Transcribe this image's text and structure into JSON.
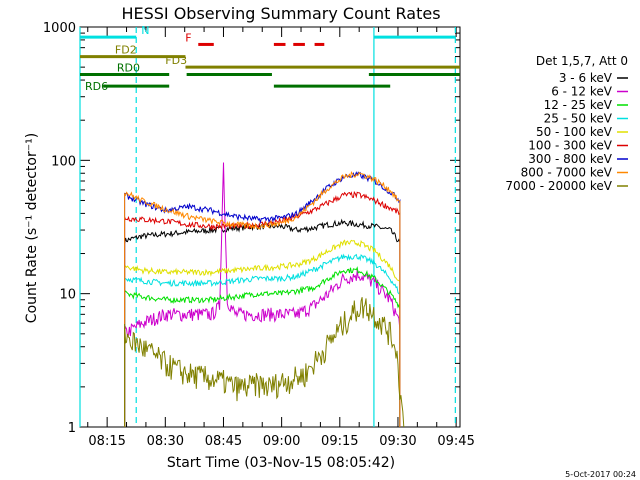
{
  "chart_data": {
    "type": "line",
    "title": "HESSI Observing Summary Count Rates",
    "xlabel": "Start Time (03-Nov-15 08:05:42)",
    "ylabel": "Count Rate (s⁻¹ detector⁻¹)",
    "yscale": "log",
    "ylim": [
      1,
      1000
    ],
    "xlim_minutes": [
      8.0,
      106.0
    ],
    "yticks": [
      {
        "v": 1,
        "label": "1"
      },
      {
        "v": 10,
        "label": "10"
      },
      {
        "v": 100,
        "label": "100"
      },
      {
        "v": 1000,
        "label": "1000"
      }
    ],
    "xticks": [
      {
        "t": 15,
        "label": "08:15"
      },
      {
        "t": 30,
        "label": "08:30"
      },
      {
        "t": 45,
        "label": "08:45"
      },
      {
        "t": 60,
        "label": "09:00"
      },
      {
        "t": 75,
        "label": "09:15"
      },
      {
        "t": 90,
        "label": "09:30"
      },
      {
        "t": 105,
        "label": "09:45"
      }
    ],
    "legend_title": "Det 1,5,7, Att 0",
    "series": [
      {
        "name": "3 - 6 keV",
        "color": "#000000",
        "x": [
          19.5,
          24,
          30,
          36,
          42,
          48,
          54,
          60,
          64,
          68,
          72,
          76,
          80,
          84,
          88,
          90.5
        ],
        "y": [
          25,
          27,
          28,
          29,
          30,
          31,
          32,
          32,
          30,
          31,
          33,
          34,
          33,
          32,
          30,
          24
        ]
      },
      {
        "name": "6 - 12 keV",
        "color": "#cc00cc",
        "x": [
          19.5,
          24,
          30,
          36,
          42,
          44,
          45,
          46,
          48,
          54,
          60,
          64,
          68,
          72,
          76,
          80,
          84,
          88,
          90.5
        ],
        "y": [
          5,
          6,
          7,
          7,
          7,
          8,
          95,
          9,
          7,
          7,
          7,
          7,
          8,
          10,
          13,
          14,
          12,
          9,
          6
        ]
      },
      {
        "name": "12 - 25 keV",
        "color": "#00e000",
        "x": [
          19.5,
          24,
          30,
          36,
          42,
          48,
          54,
          60,
          64,
          68,
          72,
          76,
          80,
          84,
          88,
          90.5
        ],
        "y": [
          10,
          9.5,
          9,
          9,
          9,
          9.5,
          10,
          10,
          10.5,
          11,
          13,
          15,
          15,
          13,
          10,
          8
        ]
      },
      {
        "name": "25 - 50 keV",
        "color": "#00e0e0",
        "x": [
          19.5,
          24,
          30,
          36,
          42,
          48,
          54,
          60,
          64,
          68,
          72,
          76,
          80,
          84,
          88,
          90.5
        ],
        "y": [
          13,
          12.5,
          12,
          12,
          12,
          12.5,
          13,
          13,
          13.5,
          15,
          17,
          19,
          19,
          17,
          13,
          10
        ]
      },
      {
        "name": "50 - 100 keV",
        "color": "#e0e000",
        "x": [
          19.5,
          24,
          30,
          36,
          42,
          48,
          54,
          60,
          64,
          68,
          72,
          76,
          80,
          84,
          88,
          90.5
        ],
        "y": [
          16,
          15,
          14.5,
          14.5,
          14.5,
          15,
          15.5,
          16,
          16.5,
          18,
          21,
          24,
          24,
          21,
          16,
          12
        ]
      },
      {
        "name": "100 - 300 keV",
        "color": "#dd0000",
        "x": [
          19.5,
          24,
          30,
          36,
          42,
          48,
          54,
          60,
          64,
          68,
          72,
          76,
          80,
          84,
          88,
          90.5
        ],
        "y": [
          37,
          36,
          35,
          33,
          32,
          32,
          33,
          35,
          38,
          42,
          48,
          55,
          55,
          50,
          44,
          40
        ]
      },
      {
        "name": "300 - 800 keV",
        "color": "#0000cc",
        "x": [
          19.5,
          24,
          30,
          36,
          42,
          48,
          54,
          60,
          64,
          68,
          72,
          76,
          80,
          84,
          88,
          90.5
        ],
        "y": [
          55,
          48,
          42,
          45,
          42,
          38,
          36,
          37,
          40,
          50,
          63,
          75,
          78,
          70,
          58,
          50
        ]
      },
      {
        "name": "800 - 7000 keV",
        "color": "#ff8800",
        "x": [
          19.5,
          24,
          30,
          36,
          42,
          48,
          54,
          60,
          64,
          68,
          72,
          76,
          80,
          84,
          88,
          90.5
        ],
        "y": [
          58,
          50,
          43,
          38,
          35,
          33,
          32,
          34,
          38,
          48,
          62,
          75,
          80,
          72,
          60,
          48
        ]
      },
      {
        "name": "7000 - 20000 keV",
        "color": "#808000",
        "x": [
          19.5,
          21,
          24,
          27,
          30,
          33,
          36,
          39,
          42,
          45,
          48,
          51,
          54,
          57,
          60,
          63,
          66,
          69,
          72,
          75,
          78,
          80,
          82,
          84,
          86,
          88,
          89.5,
          90.5,
          91.5
        ],
        "y": [
          5,
          4.5,
          4,
          3.5,
          3,
          2.7,
          2.5,
          2.4,
          2.3,
          2.2,
          2.0,
          2.0,
          2.1,
          2.0,
          2.2,
          2.3,
          2.5,
          3.2,
          4.2,
          5.5,
          7,
          8,
          8,
          7,
          6,
          5,
          4,
          2,
          1
        ]
      }
    ],
    "segments": [
      {
        "name": "N",
        "color": "#00e0e0",
        "level": 840,
        "spans": [
          [
            8.0,
            22.5
          ],
          [
            83.8,
            104.8
          ]
        ]
      },
      {
        "name": "F",
        "color": "#dd0000",
        "level": 740,
        "spans": [
          [
            38.5,
            42.5
          ],
          [
            58.0,
            61.0
          ],
          [
            63.0,
            66.0
          ],
          [
            68.5,
            71.0
          ]
        ]
      },
      {
        "name": "FD2",
        "color": "#808000",
        "level": 600,
        "spans": [
          [
            8.0,
            35.2
          ]
        ]
      },
      {
        "name": "FD3",
        "color": "#808000",
        "level": 500,
        "spans": [
          [
            35.2,
            106.0
          ]
        ]
      },
      {
        "name": "RD0",
        "color": "#007000",
        "level": 440,
        "spans": [
          [
            8.0,
            31.0
          ],
          [
            35.5,
            57.5
          ],
          [
            82.5,
            106.0
          ]
        ]
      },
      {
        "name": "RD6",
        "color": "#007000",
        "level": 360,
        "spans": [
          [
            14.0,
            31.0
          ],
          [
            58.0,
            88.0
          ]
        ]
      }
    ],
    "vlines": [
      {
        "t": 8.0,
        "style": "solid",
        "color": "#00e0e0"
      },
      {
        "t": 22.5,
        "style": "dashed",
        "color": "#00e0e0"
      },
      {
        "t": 83.8,
        "style": "solid",
        "color": "#00e0e0"
      },
      {
        "t": 104.8,
        "style": "dashed",
        "color": "#00e0e0"
      }
    ],
    "footer_date": "5-Oct-2017 00:24"
  }
}
